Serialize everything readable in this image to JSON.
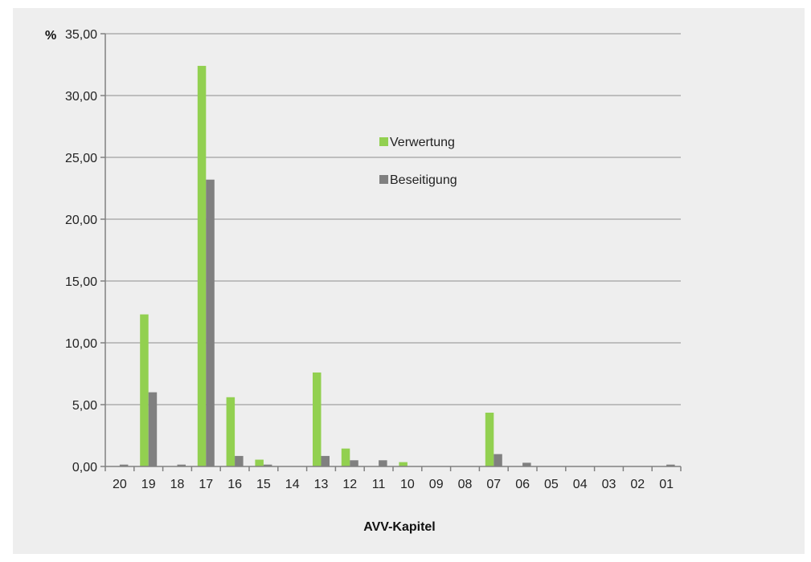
{
  "chart_data": {
    "type": "bar",
    "ylabel": "%",
    "xlabel": "AVV-Kapitel",
    "ylim": [
      0,
      35
    ],
    "yticks": [
      "0,00",
      "5,00",
      "10,00",
      "15,00",
      "20,00",
      "25,00",
      "30,00",
      "35,00"
    ],
    "categories": [
      "20",
      "19",
      "18",
      "17",
      "16",
      "15",
      "14",
      "13",
      "12",
      "11",
      "10",
      "09",
      "08",
      "07",
      "06",
      "05",
      "04",
      "03",
      "02",
      "01"
    ],
    "legend_position": "upper-center",
    "grid": true,
    "series": [
      {
        "name": "Verwertung",
        "color": "#92d050",
        "values": [
          0,
          12.3,
          0,
          32.4,
          5.6,
          0.55,
          0,
          7.6,
          1.45,
          0,
          0.35,
          0,
          0,
          4.35,
          0,
          0,
          0,
          0,
          0,
          0
        ]
      },
      {
        "name": "Beseitigung",
        "color": "#808080",
        "values": [
          0.15,
          6.0,
          0.15,
          23.2,
          0.85,
          0.15,
          0,
          0.85,
          0.5,
          0.5,
          0,
          0,
          0,
          1.0,
          0.3,
          0,
          0,
          0,
          0,
          0.15
        ]
      }
    ]
  }
}
